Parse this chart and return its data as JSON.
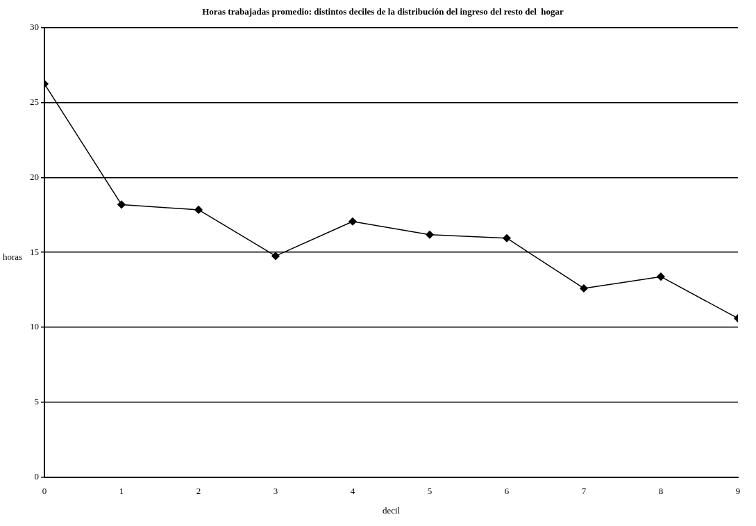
{
  "chart_data": {
    "type": "line",
    "title": "Horas trabajadas promedio: distintos deciles de la distribución del ingreso del resto del  hogar",
    "xlabel": "decil",
    "ylabel": "horas",
    "x": [
      0,
      1,
      2,
      3,
      4,
      5,
      6,
      7,
      8,
      9
    ],
    "series": [
      {
        "color": "#000000",
        "values": [
          26.24,
          18.19,
          17.84,
          14.76,
          17.06,
          16.18,
          15.95,
          12.6,
          13.38,
          10.6
        ]
      }
    ],
    "xlim": [
      0,
      9
    ],
    "xticks": [
      0,
      1,
      2,
      3,
      4,
      5,
      6,
      7,
      8,
      9
    ],
    "ylim": [
      0,
      30
    ],
    "yticks": [
      0,
      5,
      10,
      15,
      20,
      25,
      30
    ],
    "grid": "y",
    "legend": false,
    "marker": "diamond",
    "line_style": "solid"
  }
}
